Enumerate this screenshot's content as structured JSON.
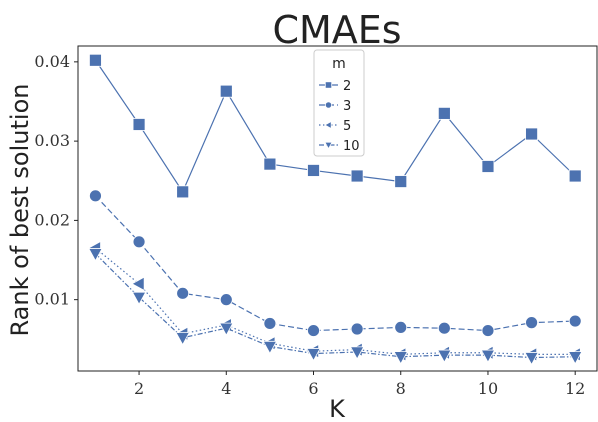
{
  "chart_data": {
    "type": "line",
    "title": "CMAEs",
    "xlabel": "K",
    "ylabel": "Rank of best solution",
    "xlim": [
      0.6,
      12.5
    ],
    "ylim": [
      0.001,
      0.042
    ],
    "xticks": [
      2,
      4,
      6,
      8,
      10,
      12
    ],
    "yticks": [
      0.01,
      0.02,
      0.03,
      0.04
    ],
    "ytick_labels": [
      "0.01",
      "0.02",
      "0.03",
      "0.04"
    ],
    "grid": false,
    "legend": {
      "title": "m",
      "placement": "top-center"
    },
    "color": "#4c72b0",
    "x": [
      1,
      2,
      3,
      4,
      5,
      6,
      7,
      8,
      9,
      10,
      11,
      12
    ],
    "series": [
      {
        "name": "2",
        "marker": "square",
        "dash": "solid",
        "values": [
          0.0402,
          0.0321,
          0.0236,
          0.0363,
          0.0271,
          0.0263,
          0.0256,
          0.0249,
          0.0335,
          0.0268,
          0.0309,
          0.0256
        ]
      },
      {
        "name": "3",
        "marker": "circle",
        "dash": "dashed",
        "values": [
          0.0231,
          0.0173,
          0.0108,
          0.01,
          0.007,
          0.0061,
          0.0063,
          0.0065,
          0.0064,
          0.0061,
          0.0071,
          0.0073
        ]
      },
      {
        "name": "5",
        "marker": "triangle-left",
        "dash": "dotted",
        "values": [
          0.0165,
          0.012,
          0.0057,
          0.0068,
          0.0045,
          0.0035,
          0.0037,
          0.0031,
          0.0033,
          0.0033,
          0.0031,
          0.0031
        ]
      },
      {
        "name": "10",
        "marker": "triangle-down",
        "dash": "dashdot",
        "values": [
          0.0158,
          0.0103,
          0.0052,
          0.0064,
          0.0041,
          0.0032,
          0.0034,
          0.0028,
          0.003,
          0.003,
          0.0027,
          0.0028
        ]
      }
    ]
  }
}
